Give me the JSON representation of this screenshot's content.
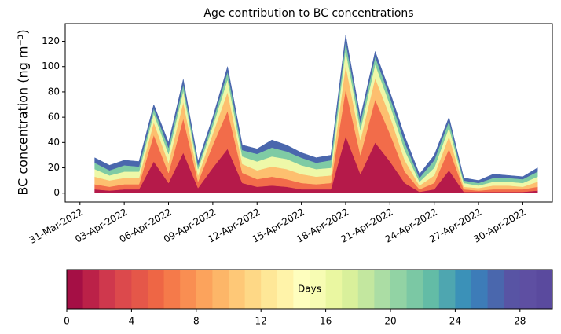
{
  "chart_data": {
    "type": "stackedarea",
    "title": "Age contribution to BC concentrations",
    "y_label": "BC concentration (ng m⁻³)",
    "x": [
      "01-Apr-2022",
      "02-Apr-2022",
      "03-Apr-2022",
      "04-Apr-2022",
      "05-Apr-2022",
      "06-Apr-2022",
      "07-Apr-2022",
      "08-Apr-2022",
      "09-Apr-2022",
      "10-Apr-2022",
      "11-Apr-2022",
      "12-Apr-2022",
      "13-Apr-2022",
      "14-Apr-2022",
      "15-Apr-2022",
      "16-Apr-2022",
      "17-Apr-2022",
      "18-Apr-2022",
      "19-Apr-2022",
      "20-Apr-2022",
      "21-Apr-2022",
      "22-Apr-2022",
      "23-Apr-2022",
      "24-Apr-2022",
      "25-Apr-2022",
      "26-Apr-2022",
      "27-Apr-2022",
      "28-Apr-2022",
      "29-Apr-2022",
      "30-Apr-2022",
      "01-May-2022"
    ],
    "series": [
      {
        "color": "#b51a4a",
        "values": [
          3,
          2,
          3,
          3,
          25,
          8,
          32,
          4,
          20,
          35,
          8,
          5,
          6,
          5,
          3,
          3,
          3,
          45,
          15,
          40,
          25,
          8,
          1,
          3,
          18,
          1,
          1,
          1,
          1,
          1,
          2
        ]
      },
      {
        "color": "#f26c4a",
        "values": [
          4,
          3,
          4,
          4,
          21,
          8,
          27,
          5,
          18,
          30,
          8,
          6,
          7,
          6,
          5,
          4,
          5,
          37,
          15,
          34,
          22,
          9,
          2,
          5,
          17,
          2,
          1,
          2,
          2,
          2,
          3
        ]
      },
      {
        "color": "#fdbf6f",
        "values": [
          6,
          5,
          5,
          5,
          10,
          8,
          13,
          5,
          9,
          15,
          7,
          7,
          8,
          8,
          7,
          6,
          6,
          19,
          12,
          17,
          14,
          9,
          3,
          6,
          10,
          2,
          2,
          3,
          3,
          2,
          4
        ]
      },
      {
        "color": "#eef8a8",
        "values": [
          6,
          4,
          5,
          5,
          7,
          7,
          9,
          5,
          6,
          10,
          6,
          7,
          8,
          8,
          7,
          6,
          6,
          12,
          8,
          11,
          9,
          8,
          3,
          6,
          7,
          3,
          2,
          3,
          3,
          3,
          4
        ]
      },
      {
        "color": "#7fcba4",
        "values": [
          5,
          4,
          5,
          4,
          4,
          5,
          5,
          3,
          4,
          6,
          5,
          6,
          7,
          6,
          6,
          5,
          6,
          7,
          6,
          6,
          6,
          6,
          3,
          6,
          5,
          2,
          2,
          3,
          3,
          3,
          4
        ]
      },
      {
        "color": "#4a67ad",
        "values": [
          4,
          4,
          4,
          4,
          3,
          4,
          4,
          3,
          3,
          4,
          4,
          4,
          6,
          5,
          4,
          4,
          4,
          5,
          4,
          4,
          4,
          5,
          3,
          4,
          3,
          2,
          2,
          3,
          2,
          2,
          3
        ]
      }
    ],
    "xlim": [
      "30-Mar-2022",
      "02-May-2022"
    ],
    "xticks": [
      "31-Mar-2022",
      "03-Apr-2022",
      "06-Apr-2022",
      "09-Apr-2022",
      "12-Apr-2022",
      "15-Apr-2022",
      "18-Apr-2022",
      "21-Apr-2022",
      "24-Apr-2022",
      "27-Apr-2022",
      "30-Apr-2022"
    ],
    "ylim": [
      -7,
      134
    ],
    "yticks": [
      0,
      20,
      40,
      60,
      80,
      100,
      120
    ],
    "colorbar": {
      "label": "Days",
      "lim": [
        0,
        30
      ],
      "ticks": [
        0,
        4,
        8,
        12,
        16,
        20,
        24,
        28
      ],
      "colors": [
        "#a50f45",
        "#bb2148",
        "#cf384d",
        "#dc494c",
        "#e55749",
        "#ee6645",
        "#f57a4a",
        "#f98e52",
        "#fca35c",
        "#fdb668",
        "#fec877",
        "#fed886",
        "#fee797",
        "#fff3a9",
        "#fefebe",
        "#f7fcb3",
        "#eaf7a1",
        "#d9f09b",
        "#c3e79f",
        "#abdda4",
        "#92d3a4",
        "#7bc8a4",
        "#63bca6",
        "#4ea6b0",
        "#3b91b8",
        "#3d7cb8",
        "#4a67ad",
        "#5854a4",
        "#5e4fa2",
        "#5a4a9e"
      ]
    }
  }
}
